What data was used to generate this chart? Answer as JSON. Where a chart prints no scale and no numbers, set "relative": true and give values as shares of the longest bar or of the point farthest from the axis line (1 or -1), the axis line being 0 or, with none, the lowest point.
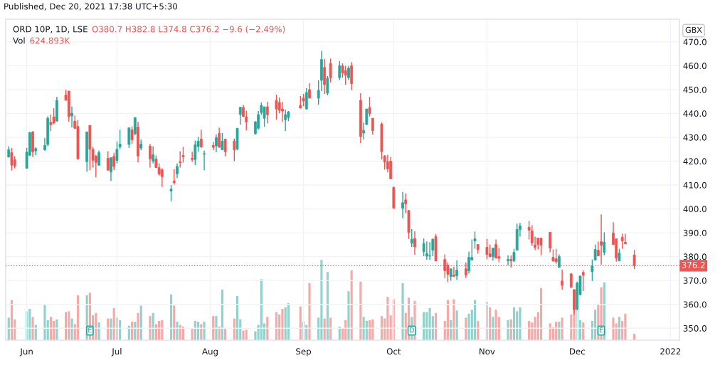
{
  "chart_data": [
    {
      "type": "candlestick",
      "title": "ORD 10P, 1D, LSE",
      "ylabel": "GBX",
      "x": [
        "2021-05-26",
        "2021-05-27",
        "2021-05-28",
        "2021-06-01",
        "2021-06-02",
        "2021-06-03",
        "2021-06-04",
        "2021-06-07",
        "2021-06-08",
        "2021-06-09",
        "2021-06-10",
        "2021-06-11",
        "2021-06-14",
        "2021-06-15",
        "2021-06-16",
        "2021-06-17",
        "2021-06-18",
        "2021-06-21",
        "2021-06-22",
        "2021-06-23",
        "2021-06-24",
        "2021-06-25",
        "2021-06-28",
        "2021-06-29",
        "2021-06-30",
        "2021-07-01",
        "2021-07-02",
        "2021-07-05",
        "2021-07-06",
        "2021-07-07",
        "2021-07-08",
        "2021-07-09",
        "2021-07-12",
        "2021-07-13",
        "2021-07-14",
        "2021-07-15",
        "2021-07-16",
        "2021-07-19",
        "2021-07-20",
        "2021-07-21",
        "2021-07-22",
        "2021-07-23",
        "2021-07-26",
        "2021-07-27",
        "2021-07-28",
        "2021-07-29",
        "2021-07-30",
        "2021-08-02",
        "2021-08-03",
        "2021-08-04",
        "2021-08-05",
        "2021-08-06",
        "2021-08-09",
        "2021-08-10",
        "2021-08-11",
        "2021-08-12",
        "2021-08-13",
        "2021-08-16",
        "2021-08-17",
        "2021-08-18",
        "2021-08-19",
        "2021-08-20",
        "2021-08-23",
        "2021-08-24",
        "2021-08-25",
        "2021-08-26",
        "2021-08-27",
        "2021-08-31",
        "2021-09-01",
        "2021-09-02",
        "2021-09-03",
        "2021-09-06",
        "2021-09-07",
        "2021-09-08",
        "2021-09-09",
        "2021-09-10",
        "2021-09-13",
        "2021-09-14",
        "2021-09-15",
        "2021-09-16",
        "2021-09-17",
        "2021-09-20",
        "2021-09-21",
        "2021-09-22",
        "2021-09-23",
        "2021-09-24",
        "2021-09-27",
        "2021-09-28",
        "2021-09-29",
        "2021-09-30",
        "2021-10-01",
        "2021-10-04",
        "2021-10-05",
        "2021-10-06",
        "2021-10-07",
        "2021-10-08",
        "2021-10-11",
        "2021-10-12",
        "2021-10-13",
        "2021-10-14",
        "2021-10-15",
        "2021-10-18",
        "2021-10-19",
        "2021-10-20",
        "2021-10-21",
        "2021-10-22",
        "2021-10-25",
        "2021-10-26",
        "2021-10-27",
        "2021-10-28",
        "2021-10-29",
        "2021-11-01",
        "2021-11-02",
        "2021-11-03",
        "2021-11-04",
        "2021-11-05",
        "2021-11-08",
        "2021-11-09",
        "2021-11-10",
        "2021-11-11",
        "2021-11-12",
        "2021-11-15",
        "2021-11-16",
        "2021-11-17",
        "2021-11-18",
        "2021-11-19",
        "2021-11-22",
        "2021-11-23",
        "2021-11-24",
        "2021-11-25",
        "2021-11-26",
        "2021-11-29",
        "2021-11-30",
        "2021-12-01",
        "2021-12-02",
        "2021-12-03",
        "2021-12-06",
        "2021-12-07",
        "2021-12-08",
        "2021-12-09",
        "2021-12-10",
        "2021-12-13",
        "2021-12-14",
        "2021-12-15",
        "2021-12-16",
        "2021-12-17",
        "2021-12-20"
      ],
      "series": [
        {
          "ohlc": [
            [
              421.8,
              426.3,
              421.5,
              424.8
            ],
            [
              423.6,
              425.6,
              416.1,
              418.3
            ],
            [
              420.6,
              422.1,
              417.0,
              418.0
            ],
            [
              417.1,
              425.6,
              416.8,
              423.8
            ],
            [
              422.5,
              432.3,
              422.3,
              432.0
            ],
            [
              432.3,
              432.6,
              421.8,
              424.0
            ],
            [
              424.3,
              425.8,
              422.5,
              425.3
            ],
            [
              424.8,
              429.8,
              424.3,
              426.6
            ],
            [
              427.0,
              438.8,
              426.3,
              438.0
            ],
            [
              436.3,
              439.6,
              432.6,
              435.3
            ],
            [
              438.6,
              442.2,
              435.5,
              436.0
            ],
            [
              436.8,
              447.0,
              436.8,
              445.5
            ],
            [
              447.8,
              450.0,
              445.5,
              445.5
            ],
            [
              449.4,
              449.4,
              436.6,
              438.7
            ],
            [
              439.0,
              443.0,
              434.2,
              440.1
            ],
            [
              436.8,
              439.1,
              433.5,
              433.8
            ],
            [
              434.6,
              437.3,
              420.6,
              421.0
            ],
            [
              419.8,
              432.3,
              415.6,
              432.3
            ],
            [
              435.0,
              435.0,
              416.3,
              425.0
            ],
            [
              425.0,
              426.0,
              417.3,
              420.4
            ],
            [
              422.1,
              422.6,
              413.3,
              419.5
            ],
            [
              418.3,
              424.5,
              418.3,
              423.6
            ],
            [
              421.2,
              424.2,
              416.0,
              416.3
            ],
            [
              415.6,
              421.5,
              411.8,
              421.5
            ],
            [
              422.0,
              423.5,
              416.3,
              417.8
            ],
            [
              420.3,
              428.3,
              419.1,
              425.0
            ],
            [
              426.0,
              433.2,
              425.0,
              427.1
            ],
            [
              427.0,
              434.0,
              425.5,
              434.0
            ],
            [
              433.2,
              434.6,
              427.3,
              429.0
            ],
            [
              431.5,
              438.3,
              430.8,
              438.3
            ],
            [
              434.3,
              436.5,
              419.5,
              422.2
            ],
            [
              425.5,
              429.0,
              424.6,
              427.2
            ],
            [
              426.3,
              427.2,
              417.3,
              421.0
            ],
            [
              420.1,
              426.3,
              419.1,
              422.7
            ],
            [
              420.9,
              422.4,
              417.3,
              417.3
            ],
            [
              417.3,
              419.1,
              414.0,
              414.6
            ],
            [
              416.4,
              417.0,
              409.2,
              413.5
            ],
            [
              407.5,
              410.0,
              403.2,
              408.3
            ],
            [
              411.7,
              416.7,
              410.2,
              411.0
            ],
            [
              414.7,
              419.1,
              412.9,
              417.8
            ],
            [
              419.8,
              424.2,
              417.3,
              419.4
            ],
            [
              422.4,
              426.0,
              419.4,
              421.9
            ],
            [
              421.2,
              424.0,
              419.8,
              420.7
            ],
            [
              420.7,
              428.6,
              418.3,
              426.9
            ],
            [
              426.1,
              430.2,
              424.0,
              428.4
            ],
            [
              429.3,
              433.2,
              425.6,
              426.0
            ],
            [
              423.0,
              424.5,
              416.2,
              423.2
            ],
            [
              426.6,
              428.1,
              424.6,
              425.8
            ],
            [
              426.4,
              431.2,
              423.7,
              429.9
            ],
            [
              431.7,
              434.1,
              425.8,
              425.8
            ],
            [
              424.8,
              431.8,
              424.8,
              428.4
            ],
            [
              429.3,
              429.3,
              422.1,
              424.0
            ],
            [
              428.4,
              429.5,
              420.0,
              424.8
            ],
            [
              425.1,
              433.8,
              424.6,
              433.8
            ],
            [
              439.6,
              442.6,
              435.3,
              442.6
            ],
            [
              442.5,
              443.6,
              438.7,
              438.7
            ],
            [
              438.6,
              441.2,
              432.9,
              436.5
            ],
            [
              431.5,
              436.8,
              431.1,
              436.5
            ],
            [
              433.8,
              441.0,
              433.2,
              439.5
            ],
            [
              440.4,
              444.6,
              439.3,
              443.4
            ],
            [
              438.0,
              442.8,
              434.4,
              442.8
            ],
            [
              442.8,
              444.9,
              435.9,
              439.5
            ],
            [
              445.5,
              447.9,
              437.4,
              441.9
            ],
            [
              444.6,
              446.7,
              440.1,
              441.3
            ],
            [
              441.9,
              444.9,
              436.5,
              441.0
            ],
            [
              437.4,
              441.6,
              432.6,
              439.5
            ],
            [
              438.3,
              441.0,
              436.8,
              440.7
            ],
            [
              443.4,
              447.3,
              442.2,
              442.2
            ],
            [
              446.4,
              448.2,
              443.1,
              445.2
            ],
            [
              441.9,
              450.6,
              441.6,
              448.8
            ],
            [
              450.0,
              452.7,
              446.4,
              446.4
            ],
            [
              446.4,
              453.9,
              443.7,
              449.7
            ],
            [
              453.9,
              466.2,
              449.4,
              462.6
            ],
            [
              459.3,
              462.9,
              448.2,
              452.1
            ],
            [
              448.5,
              455.7,
              447.6,
              454.8
            ],
            [
              461,
              463,
              453,
              455
            ],
            [
              455,
              462,
              454,
              460
            ],
            [
              460,
              461,
              455,
              457
            ],
            [
              458,
              460,
              452,
              456
            ],
            [
              455,
              460,
              454,
              459
            ],
            [
              460,
              461.5,
              449.8,
              452.5
            ],
            [
              445.5,
              448.5,
              427.6,
              430.3
            ],
            [
              431.8,
              436.2,
              429.1,
              432.9
            ],
            [
              435.4,
              441.9,
              435.1,
              441.9
            ],
            [
              442.5,
              447.0,
              438.7,
              439.9
            ],
            [
              438.0,
              438.0,
              431.2,
              432.8
            ],
            [
              435.6,
              436.2,
              420.7,
              424.0
            ],
            [
              422.2,
              422.5,
              416.5,
              419.6
            ],
            [
              419.8,
              422.7,
              415.3,
              416.8
            ],
            [
              420.0,
              421.8,
              412.6,
              412.6
            ],
            [
              409.0,
              409.4,
              400.3,
              400.3
            ],
            [
              400.3,
              407.1,
              396.1,
              402.6
            ],
            [
              403.8,
              406.5,
              398.2,
              402.1
            ],
            [
              399.3,
              399.6,
              387.4,
              390.1
            ],
            [
              385.6,
              391.5,
              384.1,
              387.3
            ],
            [
              387.6,
              390.6,
              380.8,
              384.1
            ],
            [
              382.1,
              387.6,
              380.2,
              385.5
            ],
            [
              380.2,
              386.4,
              378.7,
              381.3
            ],
            [
              380.2,
              386.1,
              378.7,
              380.4
            ],
            [
              382.7,
              387.6,
              380.2,
              387.3
            ],
            [
              388.4,
              389.5,
              378.2,
              378.2
            ],
            [
              378.8,
              380.9,
              371.0,
              374.1
            ],
            [
              376.4,
              377.6,
              369.3,
              372.6
            ],
            [
              371.7,
              374.9,
              369.9,
              374.9
            ],
            [
              372.2,
              375.8,
              371.7,
              371.7
            ],
            [
              372.0,
              378.5,
              370.2,
              374.3
            ],
            [
              374.9,
              377.6,
              371.1,
              372.3
            ],
            [
              374.1,
              382.1,
              372.9,
              379.7
            ],
            [
              378.6,
              387.2,
              378.6,
              379.7
            ],
            [
              386.6,
              390.5,
              383.3,
              387.5
            ],
            [
              385.1,
              385.1,
              381.2,
              383.0
            ],
            [
              383.9,
              387.5,
              378.9,
              380.9
            ],
            [
              381.2,
              385.1,
              379.7,
              380.0
            ],
            [
              380.0,
              383.6,
              378.3,
              383.6
            ],
            [
              385.1,
              387.2,
              379.4,
              379.4
            ],
            [
              380.0,
              383.6,
              377.6,
              379.4
            ],
            [
              378.3,
              380.6,
              376.4,
              378.8
            ],
            [
              378.8,
              380.6,
              375.5,
              378.2
            ],
            [
              378.2,
              383.3,
              377.7,
              381.8
            ],
            [
              382.7,
              393.8,
              382.7,
              391.4
            ],
            [
              391.4,
              394.1,
              388.4,
              392.9
            ],
            [
              392.3,
              395.0,
              387.2,
              391.1
            ],
            [
              390.8,
              393.2,
              384.5,
              385.7
            ],
            [
              384.8,
              388.4,
              382.7,
              383.9
            ],
            [
              387.8,
              387.8,
              383.0,
              385.1
            ],
            [
              387.8,
              387.8,
              380.6,
              384.8
            ],
            [
              390.2,
              390.2,
              381.8,
              383.6
            ],
            [
              379.7,
              383.0,
              377.9,
              378.2
            ],
            [
              379.1,
              383.3,
              377.0,
              377.9
            ],
            [
              375.5,
              380.9,
              375.5,
              380.0
            ],
            [
              369.8,
              374.6,
              366.2,
              368.0
            ],
            [
              372.8,
              373.1,
              367.1,
              367.1
            ],
            [
              366.2,
              366.2,
              355.7,
              357.8
            ],
            [
              358.1,
              369.5,
              357.5,
              368.9
            ],
            [
              364.1,
              371.9,
              363.8,
              371.9
            ],
            [
              373.4,
              374.3,
              365.6,
              372.2
            ],
            [
              373.7,
              378.8,
              369.8,
              376.1
            ],
            [
              378.5,
              385.1,
              378.5,
              383.0
            ],
            [
              382.7,
              386.3,
              380.3,
              380.3
            ],
            [
              386.3,
              397.7,
              376.7,
              384.8
            ],
            [
              381.8,
              390.2,
              380.6,
              386.0
            ],
            [
              389.9,
              394.4,
              384.8,
              385.1
            ],
            [
              387.5,
              387.5,
              377.9,
              379.4
            ],
            [
              378.2,
              383.3,
              378.2,
              381.5
            ],
            [
              388.1,
              389.6,
              383.3,
              386.6
            ],
            [
              386.0,
              389.6,
              385.4,
              385.4
            ],
            [
              380.7,
              382.8,
              374.8,
              376.2
            ]
          ],
          "colors": [
            "#26a69a",
            "#ef5350",
            "#ef5350",
            "#26a69a",
            "#26a69a",
            "#ef5350",
            "#26a69a",
            "#26a69a",
            "#26a69a",
            "#ef5350",
            "#ef5350",
            "#26a69a",
            "#ef5350",
            "#ef5350",
            "#26a69a",
            "#ef5350",
            "#ef5350",
            "#26a69a",
            "#ef5350",
            "#ef5350",
            "#ef5350",
            "#26a69a",
            "#ef5350",
            "#26a69a",
            "#ef5350",
            "#26a69a",
            "#26a69a",
            "#26a69a",
            "#ef5350",
            "#26a69a",
            "#ef5350",
            "#26a69a",
            "#ef5350",
            "#26a69a",
            "#ef5350",
            "#ef5350",
            "#ef5350",
            "#26a69a",
            "#ef5350",
            "#26a69a",
            "#ef5350",
            "#ef5350",
            "#ef5350",
            "#26a69a",
            "#26a69a",
            "#ef5350",
            "#26a69a",
            "#ef5350",
            "#26a69a",
            "#ef5350",
            "#26a69a",
            "#ef5350",
            "#ef5350",
            "#26a69a",
            "#26a69a",
            "#ef5350",
            "#ef5350",
            "#26a69a",
            "#26a69a",
            "#26a69a",
            "#26a69a",
            "#ef5350",
            "#ef5350",
            "#ef5350",
            "#ef5350",
            "#26a69a",
            "#26a69a",
            "#ef5350",
            "#ef5350",
            "#26a69a",
            "#ef5350",
            "#26a69a",
            "#26a69a",
            "#ef5350",
            "#26a69a",
            "#ef5350",
            "#26a69a",
            "#ef5350",
            "#ef5350",
            "#26a69a",
            "#ef5350",
            "#ef5350",
            "#26a69a",
            "#26a69a",
            "#ef5350",
            "#ef5350",
            "#ef5350",
            "#ef5350",
            "#ef5350",
            "#ef5350",
            "#ef5350",
            "#26a69a",
            "#ef5350",
            "#ef5350",
            "#26a69a",
            "#ef5350",
            "#26a69a",
            "#26a69a",
            "#26a69a",
            "#26a69a",
            "#ef5350",
            "#ef5350",
            "#ef5350",
            "#26a69a",
            "#ef5350",
            "#26a69a",
            "#ef5350",
            "#26a69a",
            "#26a69a",
            "#26a69a",
            "#ef5350",
            "#ef5350",
            "#ef5350",
            "#26a69a",
            "#ef5350",
            "#ef5350",
            "#26a69a",
            "#ef5350",
            "#26a69a",
            "#26a69a",
            "#26a69a",
            "#ef5350",
            "#ef5350",
            "#ef5350",
            "#ef5350",
            "#ef5350",
            "#ef5350",
            "#ef5350",
            "#ef5350",
            "#26a69a",
            "#ef5350",
            "#ef5350",
            "#ef5350",
            "#26a69a",
            "#26a69a",
            "#ef5350",
            "#26a69a",
            "#26a69a",
            "#ef5350",
            "#ef5350",
            "#26a69a",
            "#ef5350",
            "#ef5350",
            "#26a69a",
            "#ef5350",
            "#ef5350",
            "#ef5350"
          ]
        }
      ],
      "xlim": [
        "2021-05-25",
        "2022-01-04"
      ],
      "xticks": [
        {
          "value": "2021-06-01",
          "label": "Jun"
        },
        {
          "value": "2021-07-01",
          "label": "Jul"
        },
        {
          "value": "2021-08-01",
          "label": "Aug"
        },
        {
          "value": "2021-09-01",
          "label": "Sep"
        },
        {
          "value": "2021-10-01",
          "label": "Oct"
        },
        {
          "value": "2021-11-01",
          "label": "Nov"
        },
        {
          "value": "2021-12-01",
          "label": "Dec"
        },
        {
          "value": "2022-01-01",
          "label": "2022"
        }
      ],
      "ylim": [
        345,
        479.5
      ],
      "yticks": [
        {
          "value": 350,
          "label": "350.0"
        },
        {
          "value": 360,
          "label": "360.0"
        },
        {
          "value": 370,
          "label": "370.0"
        },
        {
          "value": 380,
          "label": "380.0"
        },
        {
          "value": 390,
          "label": "390.0"
        },
        {
          "value": 400,
          "label": "400.0"
        },
        {
          "value": 410,
          "label": "410.0"
        },
        {
          "value": 420,
          "label": "420.0"
        },
        {
          "value": 430,
          "label": "430.0"
        },
        {
          "value": 440,
          "label": "440.0"
        },
        {
          "value": 450,
          "label": "450.0"
        },
        {
          "value": 460,
          "label": "460.0"
        },
        {
          "value": 470,
          "label": "470.0"
        }
      ],
      "grid": true,
      "ref_lines": [
        {
          "axis": "y",
          "value": 376.2,
          "label": "376.2",
          "color": "#ef5350",
          "line_style": "dotted"
        }
      ],
      "annotations": [
        "Published, Dec 20, 2021 17:38 UTC+5:30",
        "O380.7 H382.8 L374.8 C376.2 −9.6 (−2.49%)",
        {
          "text": "E",
          "x": "2021-06-22",
          "y": 349
        },
        {
          "text": "D",
          "x": "2021-10-07",
          "y": 349
        },
        {
          "text": "E",
          "x": "2021-12-09",
          "y": 349
        }
      ]
    },
    {
      "type": "bar",
      "relative": true,
      "tick_labels": false,
      "x": [
        "2021-05-26",
        "2021-05-27",
        "2021-05-28",
        "2021-06-01",
        "2021-06-02",
        "2021-06-03",
        "2021-06-04",
        "2021-06-07",
        "2021-06-08",
        "2021-06-09",
        "2021-06-10",
        "2021-06-11",
        "2021-06-14",
        "2021-06-15",
        "2021-06-16",
        "2021-06-17",
        "2021-06-18",
        "2021-06-21",
        "2021-06-22",
        "2021-06-23",
        "2021-06-24",
        "2021-06-25",
        "2021-06-28",
        "2021-06-29",
        "2021-06-30",
        "2021-07-01",
        "2021-07-02",
        "2021-07-05",
        "2021-07-06",
        "2021-07-07",
        "2021-07-08",
        "2021-07-09",
        "2021-07-12",
        "2021-07-13",
        "2021-07-14",
        "2021-07-15",
        "2021-07-16",
        "2021-07-19",
        "2021-07-20",
        "2021-07-21",
        "2021-07-22",
        "2021-07-23",
        "2021-07-26",
        "2021-07-27",
        "2021-07-28",
        "2021-07-29",
        "2021-07-30",
        "2021-08-02",
        "2021-08-03",
        "2021-08-04",
        "2021-08-05",
        "2021-08-06",
        "2021-08-09",
        "2021-08-10",
        "2021-08-11",
        "2021-08-12",
        "2021-08-13",
        "2021-08-16",
        "2021-08-17",
        "2021-08-18",
        "2021-08-19",
        "2021-08-20",
        "2021-08-23",
        "2021-08-24",
        "2021-08-25",
        "2021-08-26",
        "2021-08-27",
        "2021-08-31",
        "2021-09-01",
        "2021-09-02",
        "2021-09-03",
        "2021-09-06",
        "2021-09-07",
        "2021-09-08",
        "2021-09-09",
        "2021-09-10",
        "2021-09-13",
        "2021-09-14",
        "2021-09-15",
        "2021-09-16",
        "2021-09-17",
        "2021-09-20",
        "2021-09-21",
        "2021-09-22",
        "2021-09-23",
        "2021-09-24",
        "2021-09-27",
        "2021-09-28",
        "2021-09-29",
        "2021-09-30",
        "2021-10-01",
        "2021-10-04",
        "2021-10-05",
        "2021-10-06",
        "2021-10-07",
        "2021-10-08",
        "2021-10-11",
        "2021-10-12",
        "2021-10-13",
        "2021-10-14",
        "2021-10-15",
        "2021-10-18",
        "2021-10-19",
        "2021-10-20",
        "2021-10-21",
        "2021-10-22",
        "2021-10-25",
        "2021-10-26",
        "2021-10-27",
        "2021-10-28",
        "2021-10-29",
        "2021-11-01",
        "2021-11-02",
        "2021-11-03",
        "2021-11-04",
        "2021-11-05",
        "2021-11-08",
        "2021-11-09",
        "2021-11-10",
        "2021-11-11",
        "2021-11-12",
        "2021-11-15",
        "2021-11-16",
        "2021-11-17",
        "2021-11-18",
        "2021-11-19",
        "2021-11-22",
        "2021-11-23",
        "2021-11-24",
        "2021-11-25",
        "2021-11-26",
        "2021-11-29",
        "2021-11-30",
        "2021-12-01",
        "2021-12-02",
        "2021-12-03",
        "2021-12-06",
        "2021-12-07",
        "2021-12-08",
        "2021-12-09",
        "2021-12-10",
        "2021-12-13",
        "2021-12-14",
        "2021-12-15",
        "2021-12-16",
        "2021-12-17",
        "2021-12-20"
      ],
      "xlim": [
        "2021-05-25",
        "2022-01-04"
      ],
      "series": [
        {
          "name": "Vol",
          "values": [
            0.28,
            0.5,
            0.26,
            0.36,
            0.39,
            0.29,
            0.19,
            0.44,
            0.25,
            0.29,
            0.24,
            0.26,
            0.35,
            0.36,
            0.27,
            0.2,
            0.56,
            0.56,
            0.59,
            0.31,
            0.34,
            0.22,
            0.27,
            0.27,
            0.4,
            0.28,
            0.25,
            0.18,
            0.23,
            0.23,
            0.34,
            0.43,
            0.3,
            0.34,
            0.2,
            0.24,
            0.25,
            0.57,
            0.43,
            0.23,
            0.19,
            0.17,
            0.14,
            0.24,
            0.23,
            0.2,
            0.23,
            0.3,
            0.3,
            0.17,
            0.63,
            0.14,
            0.27,
            0.55,
            0.26,
            0.12,
            0.13,
            0.11,
            0.19,
            0.76,
            0.21,
            0.29,
            0.35,
            0.32,
            0.39,
            0.41,
            0.46,
            0.42,
            0.23,
            0.19,
            0.71,
            0.28,
            1,
            0.27,
            0.85,
            0.28,
            0.17,
            0.15,
            0.25,
            0.61,
            0.87,
            0.73,
            0.29,
            0.24,
            0.25,
            0.26,
            0.3,
            0.27,
            0.54,
            0.31,
            0.51,
            0.71,
            0.34,
            0.53,
            0.29,
            0.49,
            0.35,
            0.35,
            0.4,
            0.3,
            0.34,
            0.24,
            0.5,
            0.25,
            0.51,
            0.37,
            0.28,
            0.33,
            0.38,
            0.5,
            0.24,
            0.48,
            0.41,
            0.29,
            0.38,
            0.29,
            0.25,
            0.26,
            0.41,
            0.36,
            0.41,
            0.24,
            0.22,
            0.29,
            0.35,
            0.65,
            0.21,
            0.16,
            0.23,
            0.23,
            0.28,
            0.32,
            0.62,
            0.4,
            0.25,
            0.22,
            0.24,
            0.38,
            0.44,
            0.66,
            0.72,
            0.28,
            0.21,
            0.29,
            0.24,
            0.33,
            0.08
          ],
          "colors": [
            "#92d2cc",
            "#f7a9a7",
            "#f7a9a7",
            "#92d2cc",
            "#92d2cc",
            "#f7a9a7",
            "#92d2cc",
            "#92d2cc",
            "#92d2cc",
            "#f7a9a7",
            "#f7a9a7",
            "#92d2cc",
            "#f7a9a7",
            "#f7a9a7",
            "#92d2cc",
            "#f7a9a7",
            "#f7a9a7",
            "#92d2cc",
            "#f7a9a7",
            "#f7a9a7",
            "#f7a9a7",
            "#92d2cc",
            "#f7a9a7",
            "#92d2cc",
            "#f7a9a7",
            "#92d2cc",
            "#92d2cc",
            "#92d2cc",
            "#f7a9a7",
            "#92d2cc",
            "#f7a9a7",
            "#92d2cc",
            "#f7a9a7",
            "#92d2cc",
            "#f7a9a7",
            "#f7a9a7",
            "#f7a9a7",
            "#92d2cc",
            "#f7a9a7",
            "#92d2cc",
            "#f7a9a7",
            "#f7a9a7",
            "#f7a9a7",
            "#92d2cc",
            "#92d2cc",
            "#f7a9a7",
            "#92d2cc",
            "#f7a9a7",
            "#92d2cc",
            "#f7a9a7",
            "#92d2cc",
            "#f7a9a7",
            "#f7a9a7",
            "#92d2cc",
            "#92d2cc",
            "#f7a9a7",
            "#f7a9a7",
            "#92d2cc",
            "#92d2cc",
            "#92d2cc",
            "#92d2cc",
            "#f7a9a7",
            "#f7a9a7",
            "#f7a9a7",
            "#f7a9a7",
            "#92d2cc",
            "#92d2cc",
            "#f7a9a7",
            "#f7a9a7",
            "#92d2cc",
            "#f7a9a7",
            "#92d2cc",
            "#92d2cc",
            "#f7a9a7",
            "#92d2cc",
            "#f7a9a7",
            "#92d2cc",
            "#f7a9a7",
            "#f7a9a7",
            "#92d2cc",
            "#f7a9a7",
            "#f7a9a7",
            "#92d2cc",
            "#92d2cc",
            "#f7a9a7",
            "#f7a9a7",
            "#f7a9a7",
            "#f7a9a7",
            "#f7a9a7",
            "#f7a9a7",
            "#f7a9a7",
            "#92d2cc",
            "#f7a9a7",
            "#f7a9a7",
            "#92d2cc",
            "#f7a9a7",
            "#92d2cc",
            "#92d2cc",
            "#92d2cc",
            "#92d2cc",
            "#f7a9a7",
            "#f7a9a7",
            "#f7a9a7",
            "#92d2cc",
            "#f7a9a7",
            "#92d2cc",
            "#f7a9a7",
            "#92d2cc",
            "#92d2cc",
            "#92d2cc",
            "#f7a9a7",
            "#f7a9a7",
            "#f7a9a7",
            "#92d2cc",
            "#f7a9a7",
            "#f7a9a7",
            "#92d2cc",
            "#f7a9a7",
            "#92d2cc",
            "#92d2cc",
            "#92d2cc",
            "#f7a9a7",
            "#f7a9a7",
            "#f7a9a7",
            "#f7a9a7",
            "#f7a9a7",
            "#f7a9a7",
            "#f7a9a7",
            "#f7a9a7",
            "#92d2cc",
            "#f7a9a7",
            "#f7a9a7",
            "#f7a9a7",
            "#92d2cc",
            "#92d2cc",
            "#f7a9a7",
            "#92d2cc",
            "#92d2cc",
            "#f7a9a7",
            "#f7a9a7",
            "#92d2cc",
            "#f7a9a7",
            "#f7a9a7",
            "#92d2cc",
            "#f7a9a7",
            "#f7a9a7",
            "#f7a9a7"
          ]
        }
      ],
      "annotations": [
        "624.893K"
      ]
    }
  ]
}
